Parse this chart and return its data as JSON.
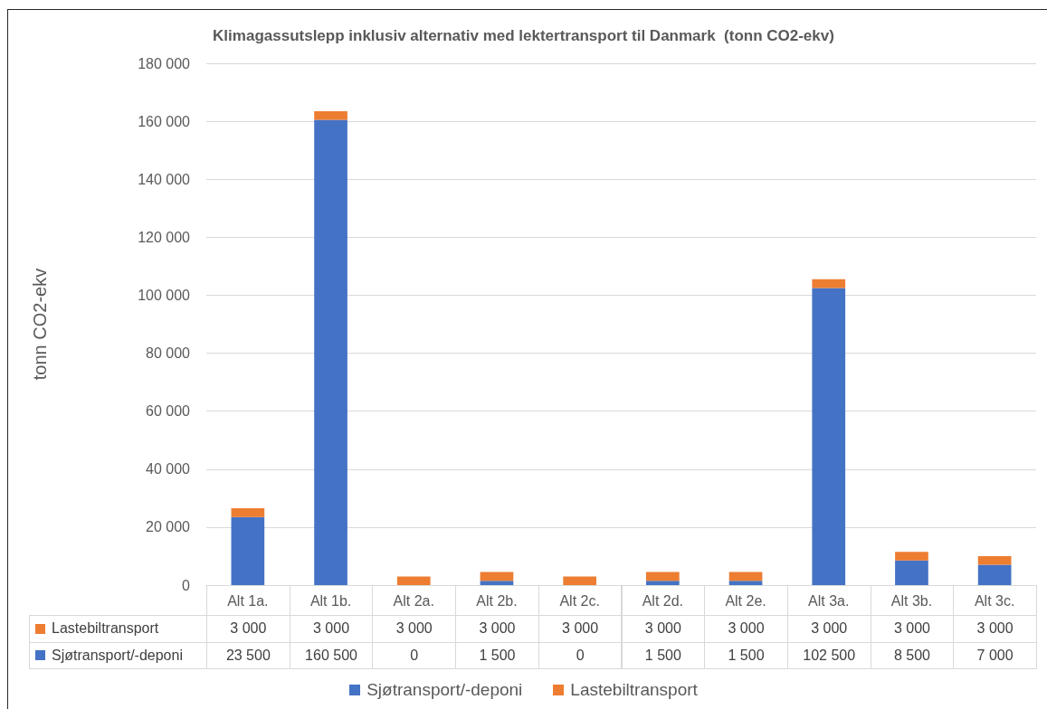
{
  "chart_data": {
    "type": "bar",
    "stacked": true,
    "title": "Klimagassutslepp inklusiv alternativ med lektertransport til Danmark  (tonn CO2-ekv)",
    "ylabel": "tonn CO2-ekv",
    "categories": [
      "Alt 1a.",
      "Alt 1b.",
      "Alt 2a.",
      "Alt 2b.",
      "Alt 2c.",
      "Alt 2d.",
      "Alt 2e.",
      "Alt 3a.",
      "Alt 3b.",
      "Alt 3c."
    ],
    "series": [
      {
        "name": "Sjøtransport/-deponi",
        "color": "#4472c4",
        "values": [
          23500,
          160500,
          0,
          1500,
          0,
          1500,
          1500,
          102500,
          8500,
          7000
        ],
        "value_labels": [
          "23 500",
          "160 500",
          "0",
          "1 500",
          "0",
          "1 500",
          "1 500",
          "102 500",
          "8 500",
          "7 000"
        ]
      },
      {
        "name": "Lastebiltransport",
        "color": "#ed7d31",
        "values": [
          3000,
          3000,
          3000,
          3000,
          3000,
          3000,
          3000,
          3000,
          3000,
          3000
        ],
        "value_labels": [
          "3 000",
          "3 000",
          "3 000",
          "3 000",
          "3 000",
          "3 000",
          "3 000",
          "3 000",
          "3 000",
          "3 000"
        ]
      }
    ],
    "ylim": [
      0,
      180000
    ],
    "yticks": [
      0,
      {
        "value": 20000,
        "label": "20 000"
      },
      {
        "value": 40000,
        "label": "40 000"
      },
      {
        "value": 60000,
        "label": "60 000"
      },
      {
        "value": 80000,
        "label": "80 000"
      },
      {
        "value": 100000,
        "label": "100 000"
      },
      {
        "value": 120000,
        "label": "120 000"
      },
      {
        "value": 140000,
        "label": "140 000"
      },
      {
        "value": 160000,
        "label": "160 000"
      },
      {
        "value": 180000,
        "label": "180 000"
      }
    ],
    "grid": "y",
    "legend": "bottom"
  }
}
